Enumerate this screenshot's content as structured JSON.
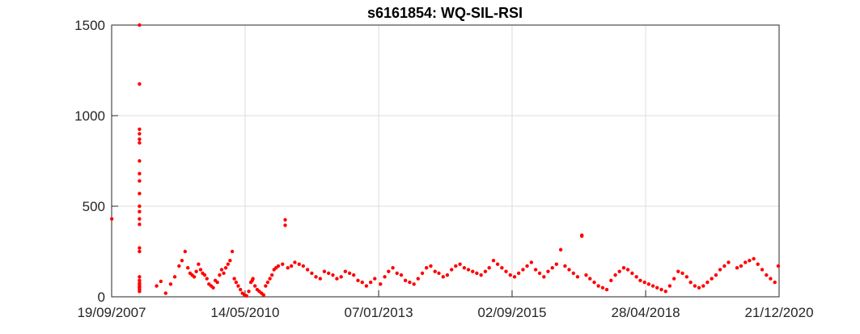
{
  "chart_data": {
    "type": "scatter",
    "title": "s6161854: WQ-SIL-RSI",
    "xlabel": "",
    "ylabel": "",
    "x_axis_type": "date",
    "xlim": [
      "2007-09-19",
      "2020-12-21"
    ],
    "ylim": [
      0,
      1500
    ],
    "x_tick_labels": [
      "19/09/2007",
      "14/05/2010",
      "07/01/2013",
      "02/09/2015",
      "28/04/2018",
      "21/12/2020"
    ],
    "x_tick_values": [
      "2007-09-19",
      "2010-05-14",
      "2013-01-07",
      "2015-09-02",
      "2018-04-28",
      "2020-12-21"
    ],
    "y_tick_labels": [
      "0",
      "500",
      "1000",
      "1500"
    ],
    "y_tick_values": [
      0,
      500,
      1000,
      1500
    ],
    "grid": true,
    "legend": "none",
    "marker_color": "#ff0000",
    "series": [
      {
        "x": [
          "2007-09-20",
          "2008-04-08",
          "2008-04-08",
          "2008-04-08",
          "2008-04-08",
          "2008-04-08",
          "2008-04-08",
          "2008-04-08",
          "2008-04-08",
          "2008-04-08",
          "2008-04-08",
          "2008-04-08",
          "2008-04-08",
          "2008-04-08",
          "2008-04-08",
          "2008-04-08",
          "2008-04-08",
          "2008-04-08",
          "2008-04-08",
          "2008-04-08",
          "2008-04-08",
          "2008-04-08",
          "2008-04-08",
          "2008-04-08",
          "2008-04-08",
          "2008-08-10",
          "2008-09-10",
          "2008-10-15",
          "2008-11-20",
          "2008-12-20",
          "2009-01-20",
          "2009-02-10",
          "2009-03-05",
          "2009-03-25",
          "2009-04-10",
          "2009-04-25",
          "2009-05-10",
          "2009-05-25",
          "2009-06-10",
          "2009-06-25",
          "2009-07-10",
          "2009-07-25",
          "2009-08-10",
          "2009-08-25",
          "2009-09-10",
          "2009-09-25",
          "2009-10-10",
          "2009-10-25",
          "2009-11-10",
          "2009-11-25",
          "2009-12-10",
          "2009-12-25",
          "2010-01-10",
          "2010-01-25",
          "2010-02-10",
          "2010-02-25",
          "2010-03-10",
          "2010-03-25",
          "2010-04-10",
          "2010-04-25",
          "2010-05-10",
          "2010-05-25",
          "2010-06-10",
          "2010-06-25",
          "2010-07-05",
          "2010-07-10",
          "2010-07-25",
          "2010-08-10",
          "2010-08-25",
          "2010-09-10",
          "2010-09-25",
          "2010-10-10",
          "2010-10-25",
          "2010-11-10",
          "2010-11-25",
          "2010-12-10",
          "2010-12-25",
          "2011-01-10",
          "2011-02-10",
          "2011-03-01",
          "2011-03-01",
          "2011-03-20",
          "2011-04-15",
          "2011-05-10",
          "2011-06-10",
          "2011-07-10",
          "2011-08-10",
          "2011-09-10",
          "2011-10-10",
          "2011-11-10",
          "2011-12-10",
          "2012-01-10",
          "2012-02-10",
          "2012-03-10",
          "2012-04-10",
          "2012-05-10",
          "2012-06-10",
          "2012-07-10",
          "2012-08-10",
          "2012-09-10",
          "2012-10-10",
          "2012-11-10",
          "2012-12-10",
          "2013-01-20",
          "2013-02-20",
          "2013-03-20",
          "2013-04-20",
          "2013-05-20",
          "2013-06-20",
          "2013-07-20",
          "2013-08-20",
          "2013-09-20",
          "2013-10-20",
          "2013-11-20",
          "2013-12-20",
          "2014-01-20",
          "2014-02-20",
          "2014-03-20",
          "2014-04-20",
          "2014-05-20",
          "2014-06-20",
          "2014-07-20",
          "2014-08-20",
          "2014-09-20",
          "2014-10-20",
          "2014-11-20",
          "2014-12-20",
          "2015-01-20",
          "2015-02-20",
          "2015-03-20",
          "2015-04-20",
          "2015-05-20",
          "2015-06-20",
          "2015-07-20",
          "2015-08-20",
          "2015-09-20",
          "2015-10-20",
          "2015-11-20",
          "2015-12-20",
          "2016-01-20",
          "2016-02-20",
          "2016-03-20",
          "2016-04-20",
          "2016-05-20",
          "2016-06-20",
          "2016-07-20",
          "2016-08-20",
          "2016-09-20",
          "2016-10-20",
          "2016-11-20",
          "2016-12-20",
          "2017-01-20",
          "2017-01-20",
          "2017-02-20",
          "2017-03-20",
          "2017-04-20",
          "2017-05-20",
          "2017-06-20",
          "2017-07-20",
          "2017-08-20",
          "2017-09-20",
          "2017-10-20",
          "2017-11-20",
          "2017-12-20",
          "2018-01-20",
          "2018-02-20",
          "2018-03-20",
          "2018-04-20",
          "2018-05-20",
          "2018-06-20",
          "2018-07-20",
          "2018-08-20",
          "2018-09-20",
          "2018-10-20",
          "2018-11-20",
          "2018-12-20",
          "2019-01-20",
          "2019-02-20",
          "2019-03-20",
          "2019-04-20",
          "2019-05-20",
          "2019-06-20",
          "2019-07-20",
          "2019-08-20",
          "2019-09-20",
          "2019-10-20",
          "2019-11-20",
          "2019-12-20",
          "2020-02-20",
          "2020-03-20",
          "2020-04-20",
          "2020-05-20",
          "2020-06-20",
          "2020-07-20",
          "2020-08-20",
          "2020-09-20",
          "2020-10-20",
          "2020-11-20",
          "2020-12-15"
        ],
        "y": [
          430,
          1500,
          1175,
          925,
          900,
          870,
          850,
          750,
          680,
          640,
          570,
          500,
          470,
          430,
          400,
          270,
          250,
          110,
          90,
          75,
          65,
          55,
          50,
          40,
          30,
          60,
          85,
          20,
          70,
          110,
          170,
          200,
          250,
          160,
          130,
          120,
          110,
          140,
          180,
          150,
          130,
          120,
          100,
          70,
          60,
          50,
          90,
          80,
          120,
          150,
          130,
          160,
          180,
          200,
          250,
          100,
          80,
          60,
          40,
          20,
          10,
          5,
          30,
          80,
          90,
          100,
          60,
          40,
          30,
          20,
          10,
          60,
          80,
          100,
          120,
          150,
          160,
          170,
          180,
          425,
          395,
          160,
          170,
          190,
          180,
          170,
          150,
          130,
          110,
          100,
          140,
          130,
          120,
          100,
          110,
          140,
          130,
          120,
          90,
          80,
          60,
          80,
          100,
          70,
          110,
          140,
          160,
          130,
          120,
          90,
          80,
          70,
          100,
          130,
          160,
          170,
          140,
          130,
          110,
          120,
          150,
          170,
          180,
          160,
          150,
          140,
          130,
          120,
          140,
          160,
          200,
          180,
          160,
          140,
          120,
          110,
          130,
          150,
          170,
          190,
          150,
          130,
          110,
          140,
          160,
          180,
          260,
          170,
          150,
          130,
          110,
          340,
          335,
          120,
          100,
          80,
          60,
          50,
          40,
          90,
          120,
          140,
          160,
          150,
          130,
          110,
          90,
          80,
          70,
          60,
          50,
          40,
          30,
          60,
          100,
          140,
          130,
          110,
          80,
          60,
          50,
          60,
          80,
          100,
          120,
          150,
          170,
          190,
          160,
          170,
          190,
          200,
          210,
          180,
          150,
          120,
          100,
          80,
          170
        ],
        "point_count_approx": 200
      }
    ]
  }
}
